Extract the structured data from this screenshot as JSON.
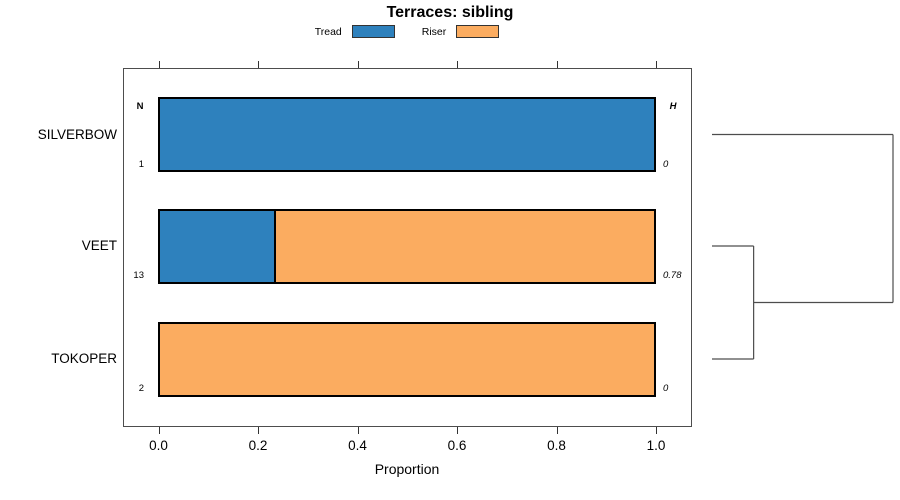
{
  "figure": {
    "title": "Terraces: sibling",
    "xlabel": "Proportion",
    "n_column_header": "N",
    "h_column_header": "H"
  },
  "legend": {
    "items": [
      {
        "label": "Tread",
        "color": "#2E81BD"
      },
      {
        "label": "Riser",
        "color": "#FBAC60"
      }
    ]
  },
  "colors": {
    "tread_blue": "#2E81BD",
    "riser_orange": "#FBAC60",
    "bar_border": "#000000",
    "axis_gray": "#4d4d4d"
  },
  "chart_data": {
    "type": "bar",
    "orientation": "horizontal",
    "stacked": true,
    "title": "Terraces: sibling",
    "xlabel": "Proportion",
    "ylabel": "",
    "xlim": [
      0,
      1
    ],
    "x_ticks": [
      "0.0",
      "0.2",
      "0.4",
      "0.6",
      "0.8",
      "1.0"
    ],
    "grid": false,
    "legend_position": "top",
    "categories": [
      "SILVERBOW",
      "VEET",
      "TOKOPER"
    ],
    "series": [
      {
        "name": "Tread",
        "color": "#2E81BD",
        "values": [
          1.0,
          0.23,
          0.0
        ]
      },
      {
        "name": "Riser",
        "color": "#FBAC60",
        "values": [
          0.0,
          0.77,
          1.0
        ]
      }
    ],
    "n_values": [
      "1",
      "13",
      "2"
    ],
    "h_values": [
      "0",
      "0.78",
      "0"
    ],
    "dendrogram": {
      "side": "right",
      "merges": [
        {
          "children": [
            "leaf:1",
            "leaf:2"
          ],
          "height": 0.23
        },
        {
          "children": [
            "leaf:0",
            "merge:0"
          ],
          "height": 1.0
        }
      ]
    }
  }
}
